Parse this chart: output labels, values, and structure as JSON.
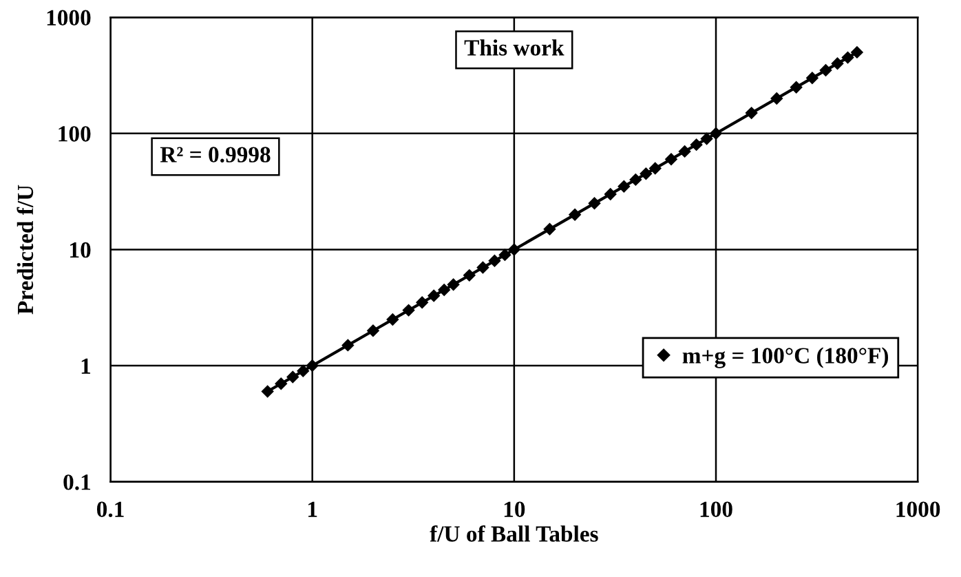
{
  "chart_data": {
    "type": "scatter",
    "xlabel": "f/U of Ball Tables",
    "ylabel": "Predicted f/U",
    "log": "xy",
    "xlim": [
      0.1,
      1000
    ],
    "ylim": [
      0.1,
      1000
    ],
    "xticks": [
      0.1,
      1,
      10,
      100,
      1000
    ],
    "yticks": [
      0.1,
      1,
      10,
      100,
      1000
    ],
    "grid": true,
    "legend": "bottom right",
    "marker": "diamond",
    "annotations": [
      "This work",
      "R² = 0.9998"
    ],
    "series": [
      {
        "name": "m+g = 100°C (180°F)",
        "color": "#000000",
        "x": [
          0.6,
          0.7,
          0.8,
          0.9,
          1,
          1.5,
          2,
          2.5,
          3,
          3.5,
          4,
          4.5,
          5,
          6,
          7,
          8,
          9,
          10,
          15,
          20,
          25,
          30,
          35,
          40,
          45,
          50,
          60,
          70,
          80,
          90,
          100,
          150,
          200,
          250,
          300,
          350,
          400,
          450,
          500
        ],
        "values": [
          0.6,
          0.7,
          0.8,
          0.9,
          1,
          1.5,
          2,
          2.5,
          3,
          3.5,
          4,
          4.5,
          5,
          6,
          7,
          8,
          9,
          10,
          15,
          20,
          25,
          30,
          35,
          40,
          45,
          50,
          60,
          70,
          80,
          90,
          100,
          150,
          200,
          250,
          300,
          350,
          400,
          450,
          500
        ]
      },
      {
        "color": "#000000",
        "type": "line",
        "marker": "none",
        "line_style": "solid",
        "x": [
          0.6,
          500
        ],
        "values": [
          0.6,
          500
        ]
      }
    ]
  }
}
